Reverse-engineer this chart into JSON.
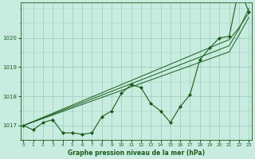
{
  "title": "Graphe pression niveau de la mer (hPa)",
  "bg_color": "#c8ece0",
  "grid_color": "#99ccbb",
  "line_color": "#1a5c1a",
  "marker_color": "#1a5c1a",
  "hours": [
    0,
    1,
    2,
    3,
    4,
    5,
    6,
    7,
    8,
    9,
    10,
    11,
    12,
    13,
    14,
    15,
    16,
    17,
    18,
    19,
    20,
    21,
    22,
    23
  ],
  "pressure": [
    1017.0,
    1016.85,
    1017.1,
    1017.2,
    1016.75,
    1016.75,
    1016.7,
    1016.75,
    1017.3,
    1017.5,
    1018.1,
    1018.4,
    1018.3,
    1017.75,
    1017.5,
    1017.1,
    1017.65,
    1018.05,
    1019.25,
    1019.65,
    1020.0,
    1020.05,
    1021.7,
    1020.9
  ],
  "trend1": [
    1017.0,
    1017.13,
    1017.26,
    1017.39,
    1017.52,
    1017.65,
    1017.78,
    1017.91,
    1018.04,
    1018.17,
    1018.3,
    1018.43,
    1018.56,
    1018.69,
    1018.82,
    1018.95,
    1019.08,
    1019.21,
    1019.34,
    1019.47,
    1019.6,
    1019.73,
    1020.3,
    1021.0
  ],
  "trend2": [
    1017.0,
    1017.14,
    1017.28,
    1017.42,
    1017.56,
    1017.7,
    1017.84,
    1017.98,
    1018.12,
    1018.26,
    1018.4,
    1018.54,
    1018.68,
    1018.82,
    1018.96,
    1019.1,
    1019.24,
    1019.38,
    1019.52,
    1019.66,
    1019.8,
    1019.94,
    1020.35,
    1020.85
  ],
  "trend3": [
    1017.0,
    1017.12,
    1017.24,
    1017.36,
    1017.48,
    1017.6,
    1017.72,
    1017.84,
    1017.96,
    1018.08,
    1018.2,
    1018.32,
    1018.44,
    1018.56,
    1018.68,
    1018.8,
    1018.92,
    1019.04,
    1019.16,
    1019.28,
    1019.4,
    1019.52,
    1020.1,
    1020.7
  ],
  "ylim": [
    1016.5,
    1021.2
  ],
  "yticks": [
    1017,
    1018,
    1019,
    1020
  ],
  "xticks": [
    0,
    1,
    2,
    3,
    4,
    5,
    6,
    7,
    8,
    9,
    10,
    11,
    12,
    13,
    14,
    15,
    16,
    17,
    18,
    19,
    20,
    21,
    22,
    23
  ]
}
